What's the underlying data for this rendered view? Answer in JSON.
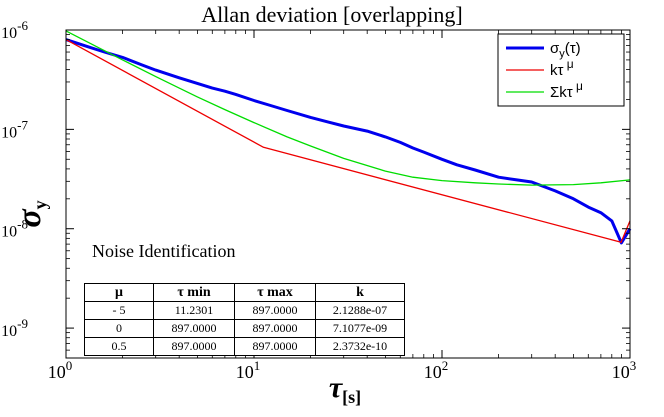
{
  "chart_data": {
    "type": "line",
    "title": "Allan deviation [overlapping]",
    "xlabel_main": "τ",
    "xlabel_sub": "[s]",
    "ylabel_main": "σ",
    "ylabel_sub": "y",
    "xscale": "log",
    "yscale": "log",
    "xlim": [
      1,
      1000
    ],
    "ylim": [
      5e-10,
      1e-06
    ],
    "x_ticks": [
      {
        "value": 1,
        "base": "10",
        "exp": "0"
      },
      {
        "value": 10,
        "base": "10",
        "exp": "1"
      },
      {
        "value": 100,
        "base": "10",
        "exp": "2"
      },
      {
        "value": 1000,
        "base": "10",
        "exp": "3"
      }
    ],
    "y_ticks": [
      {
        "value": 1e-09,
        "base": "10",
        "exp": "-9"
      },
      {
        "value": 1e-08,
        "base": "10",
        "exp": "-8"
      },
      {
        "value": 1e-07,
        "base": "10",
        "exp": "-7"
      },
      {
        "value": 1e-06,
        "base": "10",
        "exp": "-6"
      }
    ],
    "legend_position": "top-right",
    "series": [
      {
        "name": "σ_y(τ)",
        "legend_main": "σ",
        "legend_sub": "y",
        "legend_tail": "(τ)",
        "color": "#0000ee",
        "width": 3,
        "x": [
          1,
          1.3,
          1.6,
          2,
          2.5,
          3,
          4,
          5,
          6,
          7,
          8,
          10,
          12,
          15,
          20,
          25,
          30,
          40,
          50,
          60,
          70,
          80,
          100,
          120,
          150,
          200,
          250,
          300,
          400,
          500,
          600,
          700,
          800,
          900,
          950,
          1000
        ],
        "y": [
          8e-07,
          6.8e-07,
          6e-07,
          5.3e-07,
          4.5e-07,
          3.95e-07,
          3.3e-07,
          2.9e-07,
          2.6e-07,
          2.42e-07,
          2.25e-07,
          1.95e-07,
          1.76e-07,
          1.55e-07,
          1.32e-07,
          1.18e-07,
          1.08e-07,
          9.6e-08,
          8.4e-08,
          7.4e-08,
          6.5e-08,
          5.9e-08,
          5e-08,
          4.4e-08,
          3.9e-08,
          3.3e-08,
          3.1e-08,
          2.95e-08,
          2.4e-08,
          2e-08,
          1.65e-08,
          1.45e-08,
          1.2e-08,
          7.2e-09,
          8.5e-09,
          1e-08
        ]
      },
      {
        "name": "kτ^μ",
        "legend_main": "kτ",
        "legend_sup": "μ",
        "color": "#ee0000",
        "width": 1.3,
        "x": [
          1,
          11.2301,
          897,
          1000
        ],
        "y": [
          8e-07,
          6.6e-08,
          7.3e-09,
          1.2e-08
        ]
      },
      {
        "name": "Σkτ^μ",
        "legend_main": "Σkτ",
        "legend_sup": "μ",
        "color": "#00dd00",
        "width": 1.3,
        "x": [
          1,
          1.5,
          2,
          3,
          4,
          5,
          7,
          10,
          15,
          20,
          30,
          50,
          70,
          100,
          150,
          200,
          300,
          500,
          700,
          1000
        ],
        "y": [
          9.8e-07,
          6.6e-07,
          5e-07,
          3.4e-07,
          2.6e-07,
          2.12e-07,
          1.58e-07,
          1.17e-07,
          8.4e-08,
          6.8e-08,
          5.1e-08,
          3.8e-08,
          3.3e-08,
          3.05e-08,
          2.9e-08,
          2.82e-08,
          2.75e-08,
          2.78e-08,
          2.9e-08,
          3.1e-08
        ]
      }
    ]
  },
  "noise_identification": {
    "title": "Noise Identification",
    "headers": [
      "μ",
      "τ min",
      "τ max",
      "k"
    ],
    "rows": [
      [
        "- 5",
        "11.2301",
        "897.0000",
        "2.1288e-07"
      ],
      [
        "0",
        "897.0000",
        "897.0000",
        "7.1077e-09"
      ],
      [
        "0.5",
        "897.0000",
        "897.0000",
        "2.3732e-10"
      ]
    ]
  }
}
